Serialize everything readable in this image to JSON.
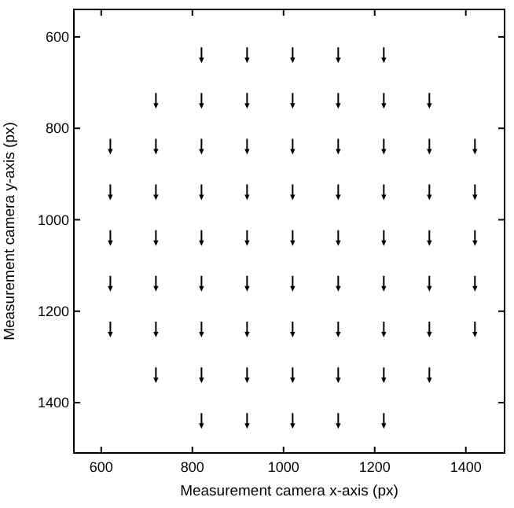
{
  "chart_data": {
    "type": "scatter",
    "xlabel": "Measurement camera x-axis (px)",
    "ylabel": "Measurement camera y-axis (px)",
    "xlim": [
      540,
      1485
    ],
    "ylim": [
      1510,
      540
    ],
    "xticks": [
      600,
      800,
      1000,
      1200,
      1400
    ],
    "yticks": [
      600,
      800,
      1000,
      1200,
      1400
    ],
    "grid": false,
    "series": [
      {
        "color": "#000000",
        "x": [
          820,
          920,
          1020,
          1120,
          1220,
          720,
          820,
          920,
          1020,
          1120,
          1220,
          1320,
          620,
          720,
          820,
          920,
          1020,
          1120,
          1220,
          1320,
          1420,
          620,
          720,
          820,
          920,
          1020,
          1120,
          1220,
          1320,
          1420,
          620,
          720,
          820,
          920,
          1020,
          1120,
          1220,
          1320,
          1420,
          620,
          720,
          820,
          920,
          1020,
          1120,
          1220,
          1320,
          1420,
          620,
          720,
          820,
          920,
          1020,
          1120,
          1220,
          1320,
          1420,
          720,
          820,
          920,
          1020,
          1120,
          1220,
          1320,
          820,
          920,
          1020,
          1120,
          1220
        ],
        "values": [
          640,
          640,
          640,
          640,
          640,
          740,
          740,
          740,
          740,
          740,
          740,
          740,
          840,
          840,
          840,
          840,
          840,
          840,
          840,
          840,
          840,
          940,
          940,
          940,
          940,
          940,
          940,
          940,
          940,
          940,
          1040,
          1040,
          1040,
          1040,
          1040,
          1040,
          1040,
          1040,
          1040,
          1140,
          1140,
          1140,
          1140,
          1140,
          1140,
          1140,
          1140,
          1140,
          1240,
          1240,
          1240,
          1240,
          1240,
          1240,
          1240,
          1240,
          1240,
          1340,
          1340,
          1340,
          1340,
          1340,
          1340,
          1340,
          1440,
          1440,
          1440,
          1440,
          1440
        ]
      }
    ]
  }
}
